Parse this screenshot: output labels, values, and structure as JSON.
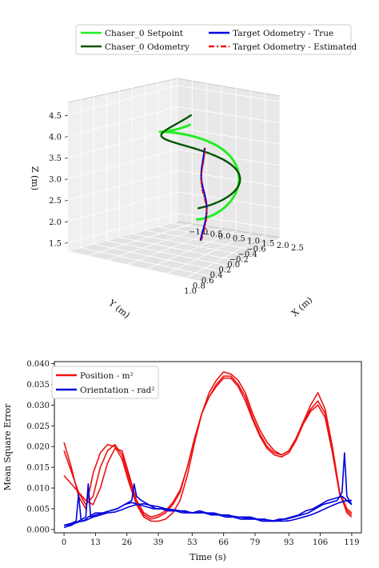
{
  "chart_data": [
    {
      "type": "line",
      "projection": "3d",
      "legend": {
        "placement": "top",
        "entries": [
          {
            "label": "Chaser_0 Setpoint",
            "color": "#22ee22",
            "style": "solid"
          },
          {
            "label": "Chaser_0 Odometry",
            "color": "#005500",
            "style": "solid"
          },
          {
            "label": "Target Odometry - True",
            "color": "#0000dd",
            "style": "solid"
          },
          {
            "label": "Target Odometry - Estimated",
            "color": "#ee1111",
            "style": "dashdot"
          }
        ]
      },
      "xlabel": "X (m)",
      "ylabel": "Y (m)",
      "zlabel": "Z (m)",
      "xticks": [
        "−1.0",
        "−0.5",
        "0.0",
        "0.5",
        "1.0",
        "1.5",
        "2.0",
        "2.5"
      ],
      "yticks": [
        "−0.6",
        "−0.4",
        "−0.2",
        "0.0",
        "0.2",
        "0.4",
        "0.6",
        "0.8",
        "1.0"
      ],
      "zticks": [
        "1.5",
        "2.0",
        "2.5",
        "3.0",
        "3.5",
        "4.0",
        "4.5"
      ],
      "xlim": [
        -1.0,
        2.5
      ],
      "ylim": [
        -0.7,
        1.0
      ],
      "zlim": [
        1.3,
        4.8
      ],
      "grid": true,
      "series": [
        {
          "name": "Chaser_0 Setpoint",
          "color": "#22ee22"
        },
        {
          "name": "Chaser_0 Odometry",
          "color": "#005500"
        },
        {
          "name": "Target Odometry - True",
          "color": "#0000dd"
        },
        {
          "name": "Target Odometry - Estimated",
          "color": "#ee1111"
        }
      ]
    },
    {
      "type": "line",
      "xlabel": "Time (s)",
      "ylabel": "Mean Square Error",
      "xlim": [
        -4,
        123
      ],
      "ylim": [
        -0.0008,
        0.0405
      ],
      "xticks": [
        0,
        13,
        26,
        39,
        53,
        66,
        79,
        93,
        106,
        119
      ],
      "yticks": [
        0.0,
        0.005,
        0.01,
        0.015,
        0.02,
        0.025,
        0.03,
        0.035,
        0.04
      ],
      "ytick_labels": [
        "0.000",
        "0.005",
        "0.010",
        "0.015",
        "0.020",
        "0.025",
        "0.030",
        "0.035",
        "0.040"
      ],
      "grid": false,
      "legend": {
        "placement": "top-left",
        "entries": [
          {
            "label": "Position - m²",
            "color": "#ee1111"
          },
          {
            "label": "Orientation - rad²",
            "color": "#0000dd"
          }
        ]
      },
      "series": [
        {
          "name": "Position - m²",
          "color": "#ee1111",
          "runs": [
            {
              "x": [
                0,
                3,
                6,
                9,
                12,
                15,
                18,
                21,
                24,
                27,
                30,
                33,
                36,
                39,
                42,
                45,
                48,
                51,
                54,
                57,
                60,
                63,
                66,
                69,
                72,
                75,
                78,
                81,
                84,
                87,
                90,
                93,
                96,
                99,
                102,
                105,
                108,
                111,
                114,
                117,
                119
              ],
              "y": [
                0.021,
                0.015,
                0.008,
                0.005,
                0.0135,
                0.0185,
                0.0205,
                0.02,
                0.017,
                0.011,
                0.006,
                0.003,
                0.002,
                0.002,
                0.0025,
                0.004,
                0.007,
                0.013,
                0.021,
                0.028,
                0.033,
                0.036,
                0.038,
                0.0375,
                0.036,
                0.033,
                0.028,
                0.024,
                0.021,
                0.019,
                0.018,
                0.019,
                0.022,
                0.026,
                0.03,
                0.033,
                0.029,
                0.02,
                0.009,
                0.004,
                0.003
              ]
            },
            {
              "x": [
                0,
                3,
                6,
                9,
                12,
                15,
                18,
                21,
                24,
                27,
                30,
                33,
                36,
                39,
                42,
                45,
                48,
                51,
                54,
                57,
                60,
                63,
                66,
                69,
                72,
                75,
                78,
                81,
                84,
                87,
                90,
                93,
                96,
                99,
                102,
                105,
                108,
                111,
                114,
                117,
                119
              ],
              "y": [
                0.019,
                0.014,
                0.009,
                0.006,
                0.008,
                0.015,
                0.019,
                0.0205,
                0.018,
                0.012,
                0.0065,
                0.0035,
                0.0025,
                0.003,
                0.004,
                0.006,
                0.009,
                0.015,
                0.022,
                0.028,
                0.032,
                0.035,
                0.037,
                0.037,
                0.035,
                0.032,
                0.027,
                0.023,
                0.02,
                0.0185,
                0.018,
                0.019,
                0.022,
                0.026,
                0.029,
                0.031,
                0.028,
                0.019,
                0.009,
                0.005,
                0.004
              ]
            },
            {
              "x": [
                0,
                3,
                6,
                9,
                12,
                15,
                18,
                21,
                24,
                27,
                30,
                33,
                36,
                39,
                42,
                45,
                48,
                51,
                54,
                57,
                60,
                63,
                66,
                69,
                72,
                75,
                78,
                81,
                84,
                87,
                90,
                93,
                96,
                99,
                102,
                105,
                108,
                111,
                114,
                117,
                119
              ],
              "y": [
                0.013,
                0.011,
                0.009,
                0.007,
                0.006,
                0.01,
                0.016,
                0.0195,
                0.019,
                0.013,
                0.007,
                0.004,
                0.003,
                0.0035,
                0.0045,
                0.0065,
                0.0095,
                0.015,
                0.022,
                0.028,
                0.032,
                0.0345,
                0.0365,
                0.0365,
                0.0345,
                0.031,
                0.0265,
                0.0225,
                0.0195,
                0.018,
                0.0175,
                0.0185,
                0.0215,
                0.0255,
                0.0285,
                0.03,
                0.027,
                0.0185,
                0.0085,
                0.0045,
                0.0035
              ]
            }
          ]
        },
        {
          "name": "Orientation - rad²",
          "color": "#0000dd",
          "runs": [
            {
              "x": [
                0,
                3,
                5,
                6,
                7,
                8,
                10,
                13,
                16,
                19,
                22,
                25,
                28,
                29,
                30,
                32,
                35,
                38,
                41,
                44,
                47,
                50,
                53,
                56,
                59,
                62,
                65,
                68,
                71,
                74,
                77,
                80,
                83,
                86,
                89,
                92,
                95,
                98,
                101,
                104,
                107,
                110,
                113,
                115,
                116,
                117,
                119
              ],
              "y": [
                0.001,
                0.0015,
                0.002,
                0.0085,
                0.0025,
                0.002,
                0.003,
                0.004,
                0.004,
                0.0045,
                0.005,
                0.006,
                0.007,
                0.011,
                0.008,
                0.007,
                0.006,
                0.005,
                0.005,
                0.0045,
                0.0045,
                0.0045,
                0.004,
                0.0045,
                0.004,
                0.004,
                0.0035,
                0.0035,
                0.003,
                0.003,
                0.003,
                0.0025,
                0.0025,
                0.002,
                0.0025,
                0.0025,
                0.003,
                0.0035,
                0.004,
                0.005,
                0.006,
                0.0065,
                0.007,
                0.009,
                0.0185,
                0.008,
                0.006
              ]
            },
            {
              "x": [
                0,
                3,
                6,
                9,
                10,
                11,
                13,
                16,
                19,
                22,
                25,
                28,
                31,
                34,
                37,
                40,
                43,
                46,
                49,
                52,
                55,
                58,
                61,
                64,
                67,
                70,
                73,
                76,
                79,
                82,
                85,
                88,
                91,
                94,
                97,
                100,
                103,
                106,
                109,
                112,
                115,
                117,
                119
              ],
              "y": [
                0.0005,
                0.001,
                0.002,
                0.003,
                0.011,
                0.003,
                0.0035,
                0.004,
                0.0045,
                0.005,
                0.006,
                0.0065,
                0.006,
                0.0055,
                0.005,
                0.005,
                0.0045,
                0.0045,
                0.004,
                0.004,
                0.004,
                0.004,
                0.0035,
                0.0035,
                0.003,
                0.003,
                0.0025,
                0.0025,
                0.0025,
                0.002,
                0.002,
                0.002,
                0.0025,
                0.003,
                0.0035,
                0.0045,
                0.005,
                0.006,
                0.007,
                0.0075,
                0.008,
                0.007,
                0.007
              ]
            },
            {
              "x": [
                0,
                3,
                6,
                9,
                12,
                15,
                18,
                21,
                24,
                27,
                30,
                33,
                36,
                39,
                42,
                45,
                48,
                51,
                54,
                57,
                60,
                63,
                66,
                69,
                72,
                75,
                78,
                81,
                84,
                87,
                90,
                93,
                96,
                99,
                102,
                105,
                108,
                111,
                114,
                117,
                119
              ],
              "y": [
                0.001,
                0.0012,
                0.0018,
                0.0022,
                0.003,
                0.0035,
                0.004,
                0.0042,
                0.0048,
                0.0055,
                0.006,
                0.0062,
                0.0058,
                0.0055,
                0.005,
                0.0048,
                0.0045,
                0.0042,
                0.004,
                0.0042,
                0.0038,
                0.0036,
                0.0034,
                0.0033,
                0.003,
                0.0028,
                0.0026,
                0.0024,
                0.0023,
                0.0021,
                0.002,
                0.0021,
                0.0025,
                0.003,
                0.0035,
                0.0042,
                0.005,
                0.0058,
                0.0065,
                0.007,
                0.006
              ]
            }
          ]
        }
      ]
    }
  ]
}
